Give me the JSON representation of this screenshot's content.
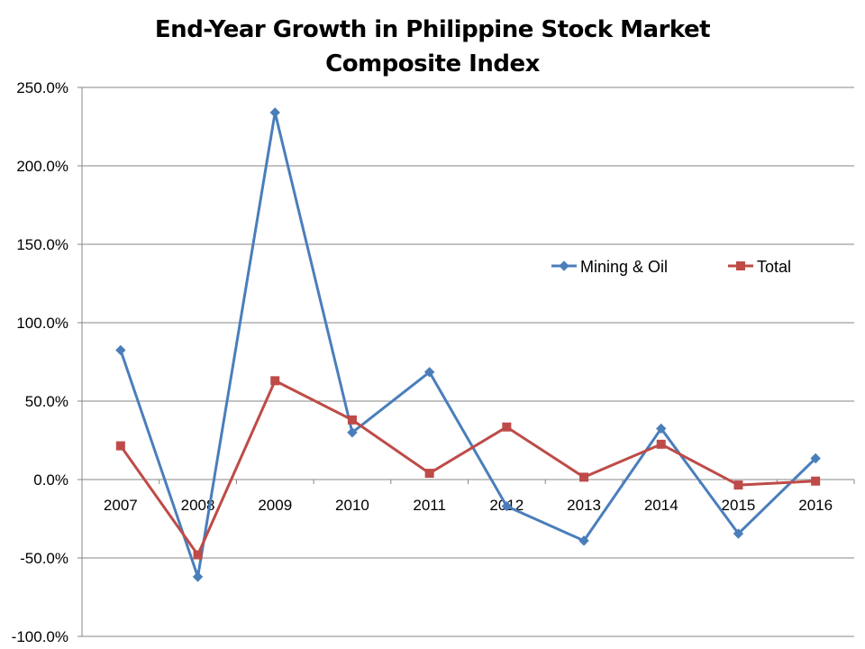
{
  "chart_data": {
    "type": "line",
    "title": [
      "End-Year Growth in Philippine Stock Market",
      "Composite Index"
    ],
    "xlabel": "",
    "ylabel": "",
    "categories": [
      "2007",
      "2008",
      "2009",
      "2010",
      "2011",
      "2012",
      "2013",
      "2014",
      "2015",
      "2016"
    ],
    "ylim": [
      -100,
      250
    ],
    "y_ticks": [
      250,
      200,
      150,
      100,
      50,
      0,
      -50,
      -100
    ],
    "y_tick_labels": [
      "250.0%",
      "200.0%",
      "150.0%",
      "100.0%",
      "50.0%",
      "0.0%",
      "-50.0%",
      "-100.0%"
    ],
    "grid": "horizontal",
    "legend_position": "right-middle",
    "series": [
      {
        "name": "Mining  & Oil",
        "color": "#4a7ebb",
        "marker": "diamond",
        "values": [
          82.5,
          -62,
          234,
          30,
          68.5,
          -17,
          -39,
          32.5,
          -34.5,
          13.5
        ]
      },
      {
        "name": "Total",
        "color": "#be4b48",
        "marker": "square",
        "values": [
          21.5,
          -48,
          63,
          38,
          4,
          33.5,
          1.5,
          22.5,
          -3.5,
          -1
        ]
      }
    ]
  }
}
